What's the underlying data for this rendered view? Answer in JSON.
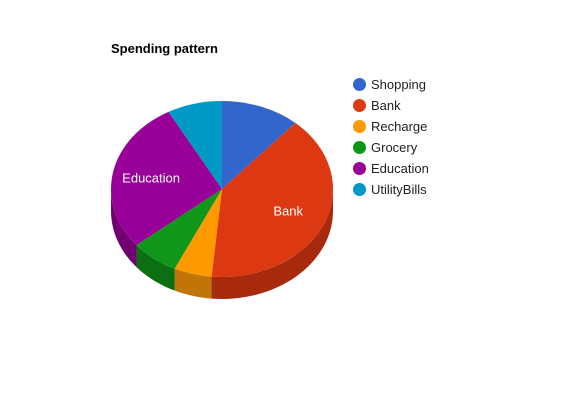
{
  "chart_data": {
    "type": "pie",
    "title": "Spending pattern",
    "is_3d": true,
    "legend_position": "right",
    "slices": [
      {
        "name": "Shopping",
        "value": 11.5,
        "color": "#3366cc",
        "side_color": "#2a55a8",
        "label": ""
      },
      {
        "name": "Bank",
        "value": 40,
        "color": "#dc3912",
        "side_color": "#a82a0d",
        "label": "Bank"
      },
      {
        "name": "Recharge",
        "value": 5.5,
        "color": "#ff9900",
        "side_color": "#c17407",
        "label": ""
      },
      {
        "name": "Grocery",
        "value": 7,
        "color": "#109618",
        "side_color": "#0c6f12",
        "label": ""
      },
      {
        "name": "Education",
        "value": 28,
        "color": "#990099",
        "side_color": "#720072",
        "label": "Education"
      },
      {
        "name": "UtilityBills",
        "value": 8,
        "color": "#0099c6",
        "side_color": "#007394",
        "label": ""
      }
    ]
  }
}
